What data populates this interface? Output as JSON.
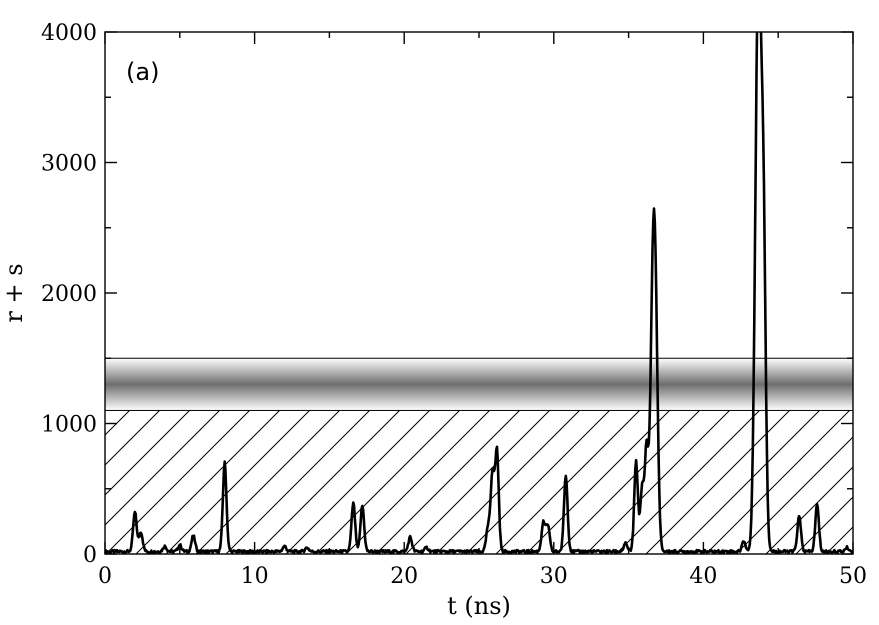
{
  "chart_data": {
    "type": "line",
    "panel_label": "(a)",
    "xlabel": "t (ns)",
    "ylabel": "r + s",
    "xlim": [
      0,
      50
    ],
    "ylim": [
      0,
      4000
    ],
    "x_ticks": [
      0,
      10,
      20,
      30,
      40,
      50
    ],
    "y_ticks": [
      0,
      1000,
      2000,
      3000,
      4000
    ],
    "grid": false,
    "line_color": "#000000",
    "shaded_bands": [
      {
        "kind": "hatched",
        "y_range": [
          0,
          1100
        ]
      },
      {
        "kind": "gradient",
        "y_range": [
          1100,
          1500
        ],
        "center": 1300
      }
    ],
    "series": [
      {
        "peaks": [
          {
            "t": 2.0,
            "h": 300
          },
          {
            "t": 2.4,
            "h": 150
          },
          {
            "t": 4.0,
            "h": 40
          },
          {
            "t": 5.0,
            "h": 50
          },
          {
            "t": 5.9,
            "h": 120
          },
          {
            "t": 8.0,
            "h": 680
          },
          {
            "t": 12.0,
            "h": 40
          },
          {
            "t": 13.5,
            "h": 30
          },
          {
            "t": 16.6,
            "h": 370
          },
          {
            "t": 17.2,
            "h": 350
          },
          {
            "t": 20.4,
            "h": 110
          },
          {
            "t": 21.5,
            "h": 30
          },
          {
            "t": 25.6,
            "h": 180
          },
          {
            "t": 25.9,
            "h": 600
          },
          {
            "t": 26.2,
            "h": 770
          },
          {
            "t": 29.3,
            "h": 220
          },
          {
            "t": 29.6,
            "h": 200
          },
          {
            "t": 30.8,
            "h": 580
          },
          {
            "t": 34.8,
            "h": 60
          },
          {
            "t": 35.5,
            "h": 690
          },
          {
            "t": 35.9,
            "h": 480
          },
          {
            "t": 36.2,
            "h": 780
          },
          {
            "t": 36.6,
            "h": 1620
          },
          {
            "t": 36.8,
            "h": 1600
          },
          {
            "t": 42.7,
            "h": 80
          },
          {
            "t": 43.5,
            "h": 1500
          },
          {
            "t": 43.7,
            "h": 3500
          },
          {
            "t": 44.0,
            "h": 2650
          },
          {
            "t": 46.4,
            "h": 270
          },
          {
            "t": 47.6,
            "h": 360
          },
          {
            "t": 49.6,
            "h": 30
          }
        ]
      }
    ]
  }
}
